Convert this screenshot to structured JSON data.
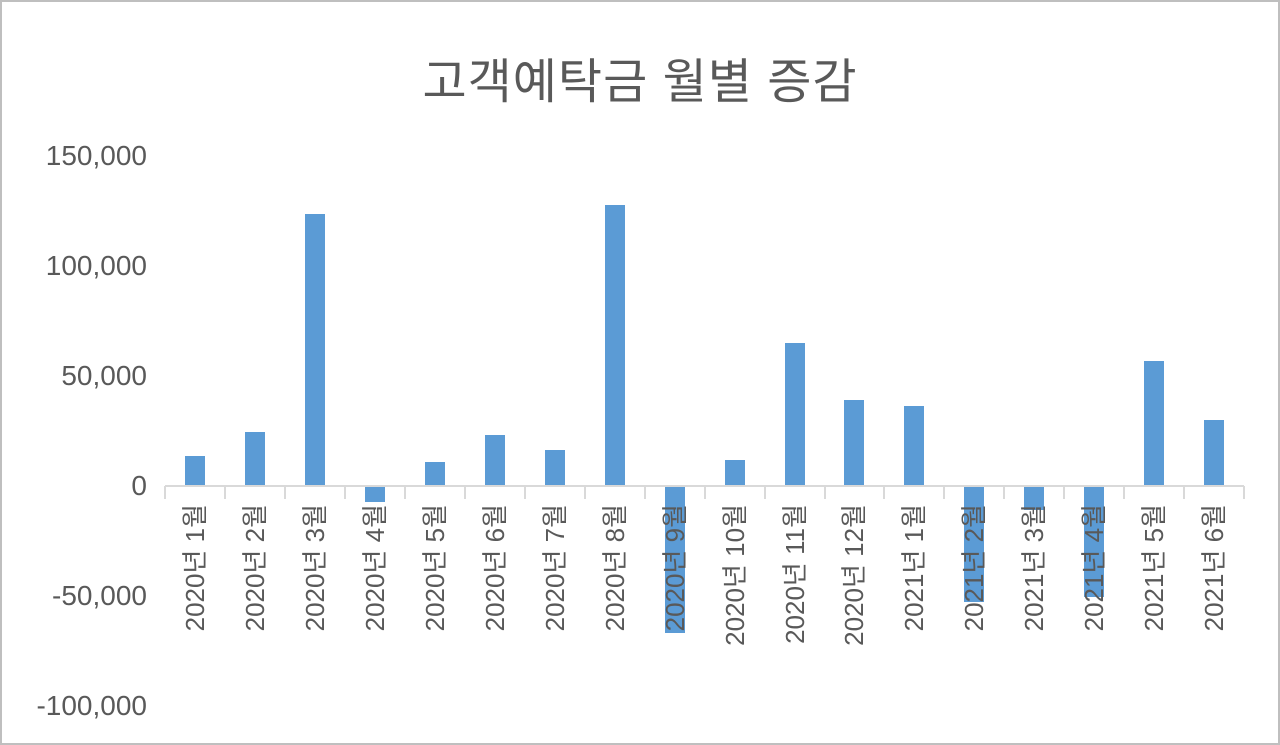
{
  "chart_data": {
    "type": "bar",
    "title": "고객예탁금 월별 증감",
    "categories": [
      "2020년 1월",
      "2020년 2월",
      "2020년 3월",
      "2020년 4월",
      "2020년 5월",
      "2020년 6월",
      "2020년 7월",
      "2020년 8월",
      "2020년 9월",
      "2020년 10월",
      "2020년 11월",
      "2020년 12월",
      "2021년 1월",
      "2021년 2월",
      "2021년 3월",
      "2021년 4월",
      "2021년 5월",
      "2021년 6월"
    ],
    "values": [
      13500,
      24500,
      123500,
      -7500,
      10500,
      23000,
      16000,
      127500,
      -67000,
      11500,
      65000,
      39000,
      36000,
      -53000,
      -11000,
      -50500,
      56500,
      30000
    ],
    "xlabel": "",
    "ylabel": "",
    "ylim": [
      -100000,
      150000
    ],
    "ytick_interval": 50000,
    "yticks": [
      {
        "label": "150,000",
        "value": 150000
      },
      {
        "label": "100,000",
        "value": 100000
      },
      {
        "label": "50,000",
        "value": 50000
      },
      {
        "label": "0",
        "value": 0
      },
      {
        "label": "-50,000",
        "value": -50000
      },
      {
        "label": "-100,000",
        "value": -100000
      }
    ],
    "grid": false,
    "legend": "none",
    "x_labels_rotation_deg": -90,
    "bar_color": "#5B9BD5",
    "axis_color": "#D9D9D9",
    "text_color": "#595959",
    "background_color": "#FFFFFF"
  }
}
